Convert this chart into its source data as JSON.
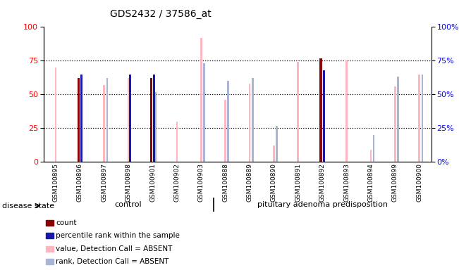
{
  "title": "GDS2432 / 37586_at",
  "samples": [
    "GSM100895",
    "GSM100896",
    "GSM100897",
    "GSM100898",
    "GSM100901",
    "GSM100902",
    "GSM100903",
    "GSM100888",
    "GSM100889",
    "GSM100890",
    "GSM100891",
    "GSM100892",
    "GSM100893",
    "GSM100894",
    "GSM100899",
    "GSM100900"
  ],
  "count_values": [
    0,
    62,
    0,
    0,
    62,
    0,
    0,
    0,
    0,
    0,
    0,
    77,
    0,
    0,
    0,
    0
  ],
  "percentile_rank": [
    0,
    65,
    0,
    65,
    65,
    0,
    0,
    0,
    0,
    0,
    0,
    68,
    0,
    0,
    0,
    0
  ],
  "value_absent": [
    70,
    0,
    57,
    62,
    0,
    30,
    92,
    46,
    58,
    12,
    74,
    0,
    75,
    9,
    56,
    65
  ],
  "rank_absent": [
    0,
    0,
    62,
    0,
    52,
    0,
    73,
    60,
    62,
    27,
    0,
    0,
    0,
    20,
    63,
    65
  ],
  "control_count": 7,
  "group1_label": "control",
  "group2_label": "pituitary adenoma predisposition",
  "ylim": [
    0,
    100
  ],
  "yticks": [
    0,
    25,
    50,
    75,
    100
  ],
  "color_count": "#8B0000",
  "color_percentile": "#1a1aaa",
  "color_value_absent": "#FFB6C1",
  "color_rank_absent": "#aab4d4",
  "bg_color": "#C8C8C8",
  "group_bg_color": "#90EE90",
  "legend_labels": [
    "count",
    "percentile rank within the sample",
    "value, Detection Call = ABSENT",
    "rank, Detection Call = ABSENT"
  ]
}
